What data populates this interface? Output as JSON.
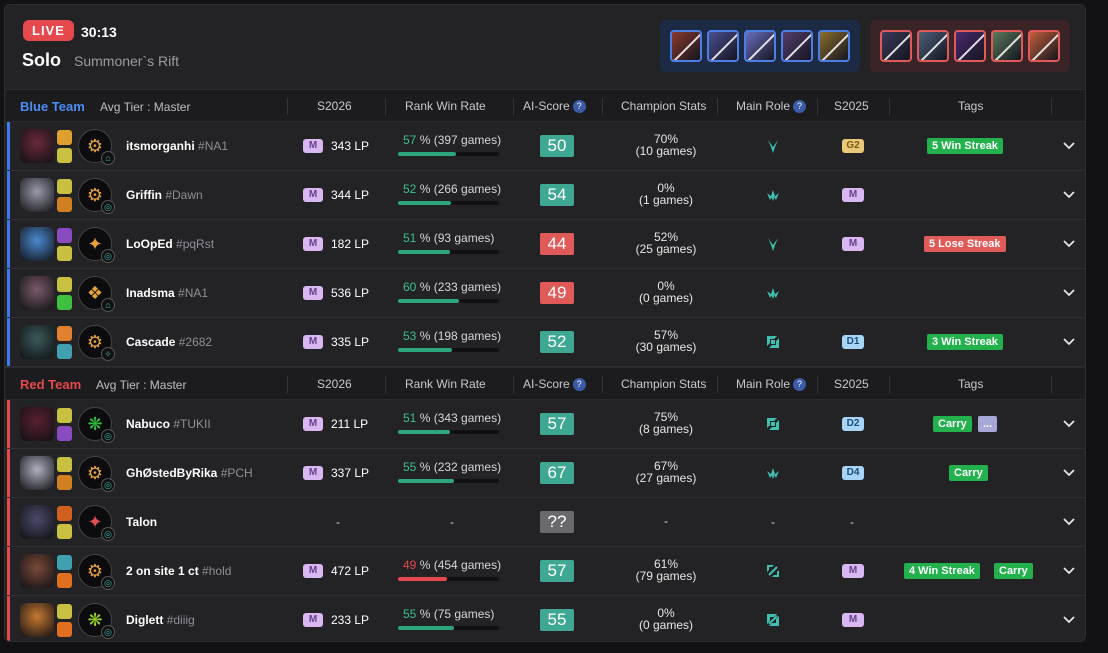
{
  "header": {
    "live_label": "LIVE",
    "timer": "30:13",
    "mode": "Solo",
    "map": "Summoner`s Rift"
  },
  "bans": {
    "blue": [
      {
        "color": "#8a3a2a"
      },
      {
        "color": "#4a4f8f"
      },
      {
        "color": "#6b6fc2"
      },
      {
        "color": "#553d6e"
      },
      {
        "color": "#8a6e2a"
      }
    ],
    "red": [
      {
        "color": "#3a3a5a"
      },
      {
        "color": "#4d5f7a"
      },
      {
        "color": "#4a2a6e"
      },
      {
        "color": "#5a7a5a"
      },
      {
        "color": "#c2603a"
      }
    ]
  },
  "columns": {
    "s2026": "S2026",
    "rank_win_rate": "Rank Win Rate",
    "ai_score": "AI-Score",
    "champion_stats": "Champion Stats",
    "main_role": "Main Role",
    "s2025": "S2025",
    "tags": "Tags",
    "help_glyph": "?"
  },
  "teams": {
    "blue": {
      "name": "Blue Team",
      "avg_tier": "Avg Tier : Master",
      "players": [
        {
          "name": "itsmorganhi",
          "tag": "#NA1",
          "tier": "M",
          "lp": "343 LP",
          "wr_pct": "57",
          "wr_text": " % (397 games)",
          "wr_value": 0.57,
          "score": "50",
          "score_color": "#3fa892",
          "cs_pct": "70%",
          "cs_games": "(10 games)",
          "role": "jungle-icon",
          "s2025": "G2",
          "s2025_style": "gold",
          "tags": [
            {
              "label": "5 Win Streak",
              "color": "#22b14c"
            }
          ],
          "champ_color": "#6a2a3a",
          "sp1": "#e0a030",
          "sp2": "#c8c040",
          "rune_glyph": "⚙",
          "rune2": "⌂"
        },
        {
          "name": "Griffin",
          "tag": "#Dawn",
          "tier": "M",
          "lp": "344 LP",
          "wr_pct": "52",
          "wr_text": " % (266 games)",
          "wr_value": 0.52,
          "score": "54",
          "score_color": "#3fa892",
          "cs_pct": "0%",
          "cs_games": "(1 games)",
          "role": "support-icon",
          "s2025": "M",
          "s2025_style": "master",
          "tags": [],
          "champ_color": "#9a9aaa",
          "sp1": "#c8c040",
          "sp2": "#d08020",
          "rune_glyph": "⚙",
          "rune2": "◎"
        },
        {
          "name": "LoOpEd",
          "tag": "#pqRst",
          "tier": "M",
          "lp": "182 LP",
          "wr_pct": "51",
          "wr_text": " % (93 games)",
          "wr_value": 0.51,
          "score": "44",
          "score_color": "#e05a5a",
          "cs_pct": "52%",
          "cs_games": "(25 games)",
          "role": "jungle-icon",
          "s2025": "M",
          "s2025_style": "master",
          "tags": [
            {
              "label": "5 Lose Streak",
              "color": "#e05a5a"
            }
          ],
          "champ_color": "#4a8ad0",
          "sp1": "#8a4ac0",
          "sp2": "#c8c040",
          "rune_glyph": "✦",
          "rune2": "◎"
        },
        {
          "name": "Inadsma",
          "tag": "#NA1",
          "tier": "M",
          "lp": "536 LP",
          "wr_pct": "60",
          "wr_text": " % (233 games)",
          "wr_value": 0.6,
          "score": "49",
          "score_color": "#e05a5a",
          "cs_pct": "0%",
          "cs_games": "(0 games)",
          "role": "support-icon",
          "s2025": "",
          "s2025_style": "none",
          "tags": [],
          "champ_color": "#7a5a6a",
          "sp1": "#c8c040",
          "sp2": "#40c040",
          "rune_glyph": "❖",
          "rune2": "⌂"
        },
        {
          "name": "Cascade",
          "tag": "#2682",
          "tier": "M",
          "lp": "335 LP",
          "wr_pct": "53",
          "wr_text": " % (198 games)",
          "wr_value": 0.53,
          "score": "52",
          "score_color": "#3fa892",
          "cs_pct": "57%",
          "cs_games": "(30 games)",
          "role": "top-icon",
          "s2025": "D1",
          "s2025_style": "diamond",
          "tags": [
            {
              "label": "3 Win Streak",
              "color": "#22b14c"
            }
          ],
          "champ_color": "#3a5a5a",
          "sp1": "#e08030",
          "sp2": "#40a0b0",
          "rune_glyph": "⚙",
          "rune2": "✧"
        }
      ]
    },
    "red": {
      "name": "Red Team",
      "avg_tier": "Avg Tier : Master",
      "players": [
        {
          "name": "Nabuco",
          "tag": "#TUKII",
          "tier": "M",
          "lp": "211 LP",
          "wr_pct": "51",
          "wr_text": " % (343 games)",
          "wr_value": 0.51,
          "score": "57",
          "score_color": "#3fa892",
          "cs_pct": "75%",
          "cs_games": "(8 games)",
          "role": "top-icon",
          "s2025": "D2",
          "s2025_style": "diamond",
          "tags": [
            {
              "label": "Carry",
              "color": "#22b14c"
            },
            {
              "label": "...",
              "color": "#a8a8d8"
            }
          ],
          "champ_color": "#5a2030",
          "sp1": "#c8c040",
          "sp2": "#8a4ac0",
          "rune_glyph": "❋",
          "rune2": "◎",
          "rune_color": "#30c040"
        },
        {
          "name": "GhØstedByRika",
          "tag": "#PCH",
          "tier": "M",
          "lp": "337 LP",
          "wr_pct": "55",
          "wr_text": " % (232 games)",
          "wr_value": 0.55,
          "score": "67",
          "score_color": "#3fa892",
          "cs_pct": "67%",
          "cs_games": "(27 games)",
          "role": "support-icon",
          "s2025": "D4",
          "s2025_style": "diamond",
          "tags": [
            {
              "label": "Carry",
              "color": "#22b14c"
            }
          ],
          "champ_color": "#b0b0c0",
          "sp1": "#c8c040",
          "sp2": "#d08020",
          "rune_glyph": "⚙",
          "rune2": "◎"
        },
        {
          "name": "Talon",
          "tag": "",
          "tier": "",
          "lp": "",
          "wr_pct": "",
          "wr_text": "",
          "wr_value": null,
          "score": "??",
          "score_color": "#6a6a6e",
          "cs_pct": "-",
          "cs_games": "",
          "role": "",
          "s2025": "-",
          "s2025_style": "dash",
          "tags": [],
          "champ_color": "#4a4a6a",
          "sp1": "#d06020",
          "sp2": "#c8c040",
          "rune_glyph": "✦",
          "rune2": "◎",
          "rune_color": "#e05050",
          "missing": true
        },
        {
          "name": "2 on site 1 ct",
          "tag": "#hold",
          "tier": "M",
          "lp": "472 LP",
          "wr_pct": "49",
          "wr_text": " % (454 games)",
          "wr_value": 0.49,
          "score": "57",
          "score_color": "#3fa892",
          "cs_pct": "61%",
          "cs_games": "(79 games)",
          "role": "mid-icon",
          "s2025": "M",
          "s2025_style": "master",
          "tags": [
            {
              "label": "4 Win Streak",
              "color": "#22b14c"
            },
            {
              "label": "Carry",
              "color": "#22b14c"
            }
          ],
          "champ_color": "#7a4a3a",
          "sp1": "#40a0b0",
          "sp2": "#e07020",
          "rune_glyph": "⚙",
          "rune2": "◎",
          "low": true
        },
        {
          "name": "Diglett",
          "tag": "#diiig",
          "tier": "M",
          "lp": "233 LP",
          "wr_pct": "55",
          "wr_text": " % (75 games)",
          "wr_value": 0.55,
          "score": "55",
          "score_color": "#3fa892",
          "cs_pct": "0%",
          "cs_games": "(0 games)",
          "role": "bottom-icon",
          "s2025": "M",
          "s2025_style": "master",
          "tags": [],
          "champ_color": "#c87830",
          "sp1": "#c8c040",
          "sp2": "#e07020",
          "rune_glyph": "❋",
          "rune2": "◎",
          "rune_color": "#9ad020"
        }
      ]
    }
  },
  "colors": {
    "blue_accent": "#4c8df5",
    "red_accent": "#e5484d",
    "score_good": "#3fa892",
    "score_bad": "#e05a5a",
    "wr_bar": "#2ea67d"
  },
  "icons": {
    "expand": "chevron-down-icon"
  }
}
